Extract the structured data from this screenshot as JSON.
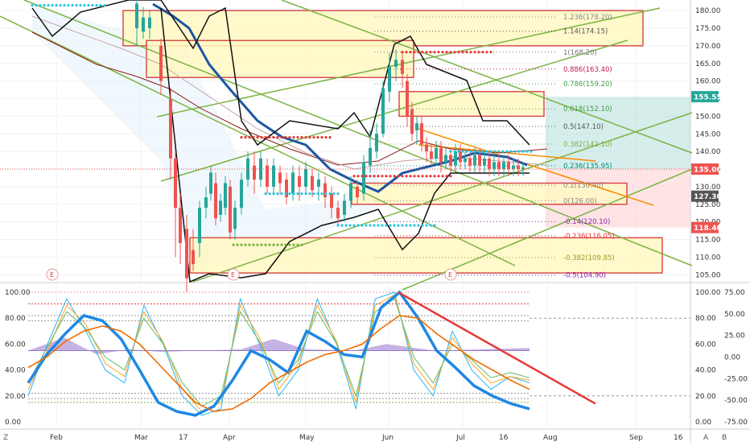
{
  "chart_data": [
    {
      "type": "candlestick",
      "title": "",
      "x_axis": {
        "labels": [
          "Feb",
          "Mar",
          "17",
          "Apr",
          "May",
          "Jun",
          "Jul",
          "16",
          "Aug",
          "Sep",
          "16"
        ]
      },
      "y_axis": {
        "ticks": [
          180,
          175,
          170,
          165,
          160,
          155,
          150,
          145,
          140,
          135,
          130,
          125,
          120,
          115,
          110,
          105
        ],
        "ylim": [
          103,
          183
        ]
      },
      "price_badges": [
        {
          "text": "155.55",
          "value": 155.55,
          "color": "#26a69a"
        },
        {
          "text": "135.00",
          "value": 135.0,
          "color": "#ef5350"
        },
        {
          "text": "127.30",
          "value": 127.3,
          "color": "#555555"
        },
        {
          "text": "118.40",
          "value": 118.4,
          "color": "#ef5350"
        }
      ],
      "fib_levels": [
        {
          "text": "1.236(178.20)",
          "value": 178.2,
          "color": "#888888"
        },
        {
          "text": "1.14(174.15)",
          "value": 174.15,
          "color": "#555555"
        },
        {
          "text": "1(168.20)",
          "value": 168.2,
          "color": "#777777"
        },
        {
          "text": "0.886(163.40)",
          "value": 163.4,
          "color": "#c2185b"
        },
        {
          "text": "0.786(159.20)",
          "value": 159.2,
          "color": "#43a047"
        },
        {
          "text": "0.618(152.10)",
          "value": 152.1,
          "color": "#43a047"
        },
        {
          "text": "0.5(147.10)",
          "value": 147.1,
          "color": "#555555"
        },
        {
          "text": "0.382(142.10)",
          "value": 142.1,
          "color": "#7cb342"
        },
        {
          "text": "0.236(135.95)",
          "value": 135.95,
          "color": "#00897b"
        },
        {
          "text": "0.1(130.40)",
          "value": 130.4,
          "color": "#888888"
        },
        {
          "text": "0(126.00)",
          "value": 126.0,
          "color": "#888888"
        },
        {
          "text": "-0.14(120.10)",
          "value": 120.1,
          "color": "#8e24aa"
        },
        {
          "text": "-0.236(116.05)",
          "value": 116.05,
          "color": "#e53935"
        },
        {
          "text": "-0.382(109.85)",
          "value": 109.85,
          "color": "#9e9d24"
        },
        {
          "text": "-0.5(104.90)",
          "value": 104.9,
          "color": "#8e24aa"
        }
      ],
      "event_markers": [
        "E",
        "E",
        "E"
      ],
      "colors": {
        "up": "#26a69a",
        "down": "#ef5350",
        "zone_fill": "#fff9c4",
        "zone_border": "#d32f2f",
        "trend": "#7cb342",
        "bb": "#000000",
        "ma": "#1e56a0"
      }
    },
    {
      "type": "line",
      "title": "",
      "y_axis_left": {
        "ticks": [
          100,
          80,
          60,
          40,
          20,
          0
        ],
        "ylim": [
          -5,
          105
        ]
      },
      "y_axis_right": {
        "ticks": [
          "75.00",
          "50.00",
          "25.00",
          "0.00",
          "-25.00",
          "-50.00",
          "-75.00"
        ]
      },
      "right_axis_extra": [
        "100.00",
        "80.00",
        "60.00",
        "40.00",
        "20.00",
        "0.00"
      ],
      "series": [
        {
          "color": "#1e88e5",
          "values": [
            30,
            52,
            68,
            82,
            78,
            64,
            40,
            15,
            8,
            5,
            12,
            32,
            55,
            48,
            38,
            70,
            62,
            52,
            50,
            88,
            100,
            80,
            55,
            42,
            28,
            20,
            14,
            10
          ]
        },
        {
          "color": "#ef6c00",
          "values": [
            42,
            50,
            62,
            70,
            74,
            70,
            60,
            45,
            30,
            15,
            8,
            10,
            18,
            30,
            38,
            46,
            52,
            55,
            60,
            72,
            82,
            80,
            68,
            58,
            48,
            40,
            32,
            25
          ]
        }
      ],
      "trendline_color": "#e53935"
    }
  ],
  "footer": {
    "z_label": "Z",
    "a_label": "A",
    "b_label": "B"
  }
}
